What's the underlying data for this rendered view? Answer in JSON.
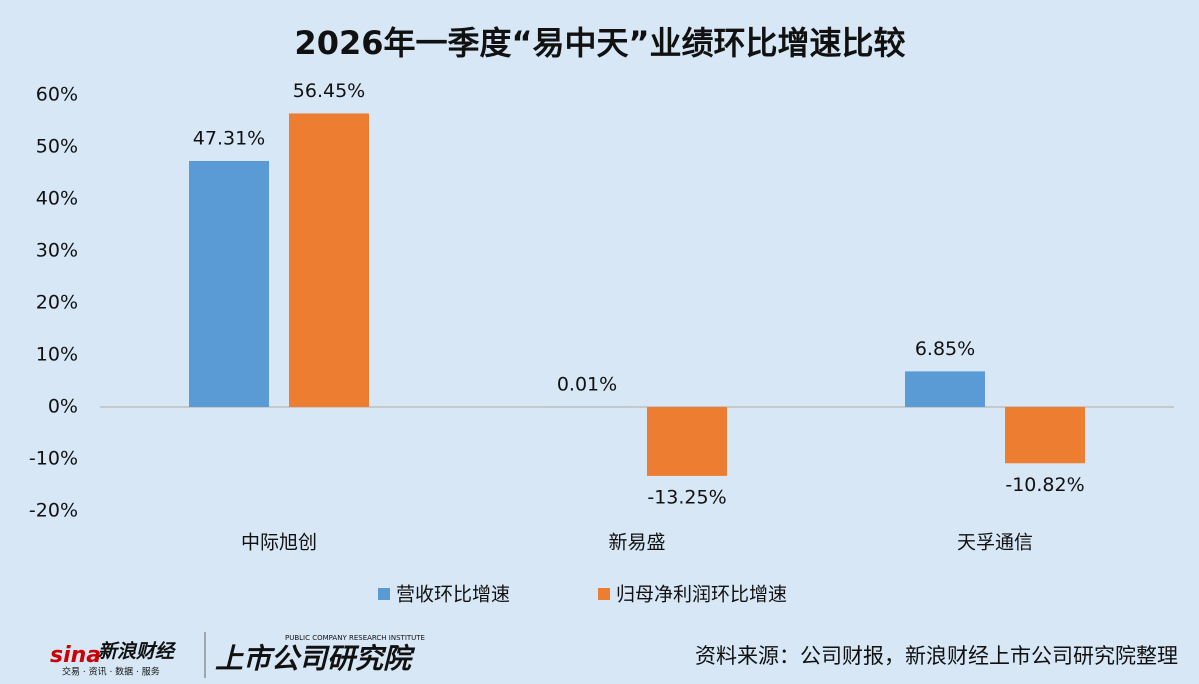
{
  "chart_data": {
    "type": "bar",
    "title": "2026年一季度“易中天”业绩环比增速比较",
    "categories": [
      "中际旭创",
      "新易盛",
      "天孚通信"
    ],
    "series": [
      {
        "name": "营收环比增速",
        "color": "#5b9bd5",
        "values": [
          47.31,
          0.01,
          6.85
        ],
        "value_labels": [
          "47.31%",
          "0.01%",
          "6.85%"
        ]
      },
      {
        "name": "归母净利润环比增速",
        "color": "#ed7d31",
        "values": [
          56.45,
          -13.25,
          -10.82
        ],
        "value_labels": [
          "56.45%",
          "-13.25%",
          "-10.82%"
        ]
      }
    ],
    "ylim": [
      -20,
      60
    ],
    "yticks": [
      {
        "value": -20,
        "label": "-20%"
      },
      {
        "value": -10,
        "label": "-10%"
      },
      {
        "value": 0,
        "label": "0%"
      },
      {
        "value": 10,
        "label": "10%"
      },
      {
        "value": 20,
        "label": "20%"
      },
      {
        "value": 30,
        "label": "30%"
      },
      {
        "value": 40,
        "label": "40%"
      },
      {
        "value": 50,
        "label": "50%"
      },
      {
        "value": 60,
        "label": "60%"
      }
    ],
    "grid": false,
    "legend": "bottom"
  },
  "footer": {
    "logo_mark": "sina",
    "logo": "新浪财经",
    "logo_sub": "交易 · 资讯 · 数据 · 服务",
    "brand": "上市公司研究院",
    "brand_sub": "PUBLIC COMPANY RESEARCH INSTITUTE",
    "source": "资料来源：公司财报，新浪财经上市公司研究院整理"
  }
}
